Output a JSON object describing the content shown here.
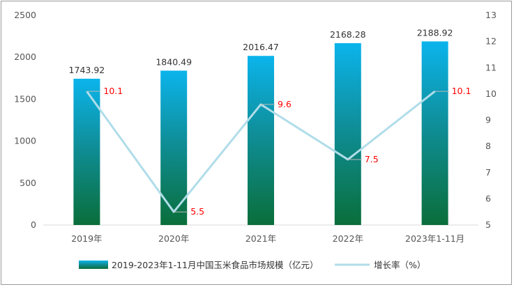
{
  "chart_data": {
    "type": "bar",
    "categories": [
      "2019年",
      "2020年",
      "2021年",
      "2022年",
      "2023年1-11月"
    ],
    "series": [
      {
        "name": "2019-2023年1-11月中国玉米食品市场规模（亿元）",
        "type": "bar",
        "axis": "left",
        "values": [
          1743.92,
          1840.49,
          2016.47,
          2168.28,
          2188.92
        ],
        "value_labels": [
          "1743.92",
          "1840.49",
          "2016.47",
          "2168.28",
          "2188.92"
        ]
      },
      {
        "name": "增长率（%）",
        "type": "line",
        "axis": "right",
        "values": [
          10.1,
          5.5,
          9.6,
          7.5,
          10.1
        ],
        "value_labels": [
          "10.1",
          "5.5",
          "9.6",
          "7.5",
          "10.1"
        ]
      }
    ],
    "y_left": {
      "min": 0,
      "max": 2500,
      "ticks": [
        "0",
        "500",
        "1000",
        "1500",
        "2000",
        "2500"
      ]
    },
    "y_right": {
      "min": 5,
      "max": 13,
      "ticks": [
        "5",
        "6",
        "7",
        "8",
        "9",
        "10",
        "11",
        "12",
        "13"
      ]
    },
    "title": "",
    "xlabel": "",
    "ylabel": "",
    "legend_position": "bottom",
    "grid": false,
    "colors": {
      "bar_top": "#0bb4ec",
      "bar_mid": "#0f8f9a",
      "bar_bottom": "#0a6e3a",
      "line": "#b0dde9",
      "rate_label": "#ff0000",
      "text": "#333333",
      "axis": "#d9d9d9"
    }
  }
}
